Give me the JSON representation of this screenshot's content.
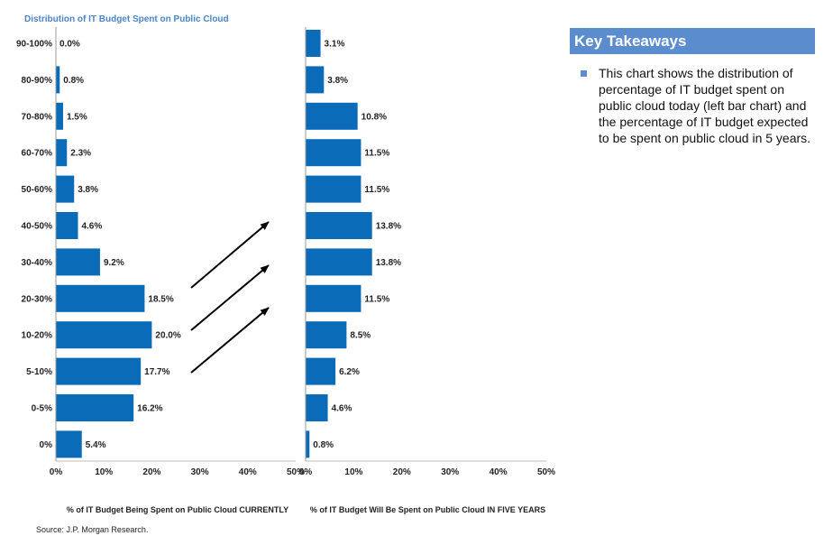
{
  "chart_data": [
    {
      "type": "bar",
      "orientation": "horizontal",
      "title": "Distribution of IT Budget Spent on Public Cloud",
      "categories": [
        "90-100%",
        "80-90%",
        "70-80%",
        "60-70%",
        "50-60%",
        "40-50%",
        "30-40%",
        "20-30%",
        "10-20%",
        "5-10%",
        "0-5%",
        "0%"
      ],
      "values": [
        0.0,
        0.8,
        1.5,
        2.3,
        3.8,
        4.6,
        9.2,
        18.5,
        20.0,
        17.7,
        16.2,
        5.4
      ],
      "value_labels": [
        "0.0%",
        "0.8%",
        "1.5%",
        "2.3%",
        "3.8%",
        "4.6%",
        "9.2%",
        "18.5%",
        "20.0%",
        "17.7%",
        "16.2%",
        "5.4%"
      ],
      "xlabel": "% of IT Budget Being Spent on Public Cloud CURRENTLY",
      "xlim": [
        0,
        50
      ],
      "xticks": [
        "0%",
        "10%",
        "20%",
        "30%",
        "40%",
        "50%"
      ],
      "color": "#0a6bb8"
    },
    {
      "type": "bar",
      "orientation": "horizontal",
      "categories": [
        "90-100%",
        "80-90%",
        "70-80%",
        "60-70%",
        "50-60%",
        "40-50%",
        "30-40%",
        "20-30%",
        "10-20%",
        "5-10%",
        "0-5%",
        "0%"
      ],
      "values": [
        3.1,
        3.8,
        10.8,
        11.5,
        11.5,
        13.8,
        13.8,
        11.5,
        8.5,
        6.2,
        4.6,
        0.8
      ],
      "value_labels": [
        "3.1%",
        "3.8%",
        "10.8%",
        "11.5%",
        "11.5%",
        "13.8%",
        "13.8%",
        "11.5%",
        "8.5%",
        "6.2%",
        "4.6%",
        "0.8%"
      ],
      "xlabel": "% of IT Budget Will Be Spent on Public Cloud IN FIVE YEARS",
      "xlim": [
        0,
        50
      ],
      "xticks": [
        "0%",
        "10%",
        "20%",
        "30%",
        "40%",
        "50%"
      ],
      "color": "#0a6bb8"
    }
  ],
  "source": "Source: J.P. Morgan Research.",
  "takeaways": {
    "title": "Key Takeaways",
    "bullet": "This chart shows the distribution of percentage of IT budget spent on public cloud today (left bar chart) and the percentage of IT budget expected to be spent on public cloud in 5 years."
  },
  "colors": {
    "bar": "#0a6bb8",
    "accent": "#5b8dce"
  }
}
